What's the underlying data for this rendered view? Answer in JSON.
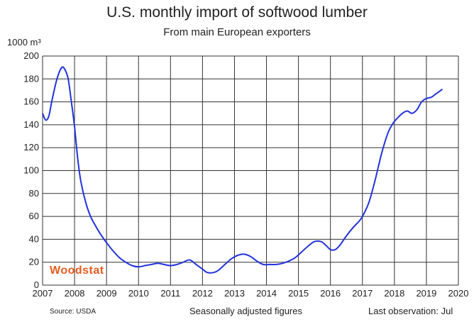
{
  "chart_data": {
    "type": "line",
    "title": "U.S.  monthly import of softwood lumber",
    "subtitle": "From main European exporters",
    "ylabel": "1000 m³",
    "xlim": [
      2007,
      2020
    ],
    "ylim": [
      0,
      200
    ],
    "x_ticks": [
      "2007",
      "2008",
      "2009",
      "2010",
      "2011",
      "2012",
      "2013",
      "2014",
      "2015",
      "2016",
      "2017",
      "2018",
      "2019",
      "2020"
    ],
    "y_ticks": [
      "0",
      "20",
      "40",
      "60",
      "80",
      "100",
      "120",
      "140",
      "160",
      "180",
      "200"
    ],
    "grid": true,
    "legend": "none",
    "series": [
      {
        "color": "#2233dd",
        "x": [
          2007.0,
          2007.1,
          2007.2,
          2007.3,
          2007.45,
          2007.6,
          2007.7,
          2007.8,
          2007.9,
          2008.0,
          2008.1,
          2008.2,
          2008.35,
          2008.5,
          2008.65,
          2008.8,
          2009.0,
          2009.2,
          2009.4,
          2009.6,
          2009.8,
          2010.0,
          2010.2,
          2010.4,
          2010.6,
          2010.8,
          2011.0,
          2011.2,
          2011.4,
          2011.6,
          2011.8,
          2012.0,
          2012.15,
          2012.35,
          2012.5,
          2012.7,
          2012.9,
          2013.1,
          2013.3,
          2013.5,
          2013.7,
          2013.9,
          2014.1,
          2014.3,
          2014.5,
          2014.7,
          2014.9,
          2015.1,
          2015.3,
          2015.5,
          2015.7,
          2015.85,
          2016.0,
          2016.15,
          2016.3,
          2016.5,
          2016.7,
          2016.9,
          2017.0,
          2017.2,
          2017.4,
          2017.6,
          2017.8,
          2017.95,
          2018.1,
          2018.25,
          2018.4,
          2018.55,
          2018.7,
          2018.85,
          2019.0,
          2019.15,
          2019.3,
          2019.5
        ],
        "y": [
          150,
          144,
          148,
          162,
          180,
          190,
          188,
          180,
          160,
          138,
          110,
          90,
          72,
          60,
          52,
          45,
          37,
          30,
          24,
          20,
          17,
          16,
          17,
          18,
          19,
          18,
          17,
          18,
          20,
          22,
          18,
          14,
          11,
          11,
          13,
          18,
          23,
          26,
          27,
          25,
          21,
          18,
          18,
          18,
          19,
          21,
          24,
          29,
          34,
          38,
          38,
          35,
          31,
          31,
          35,
          43,
          50,
          56,
          60,
          72,
          92,
          115,
          133,
          141,
          146,
          150,
          152,
          150,
          153,
          160,
          163,
          164,
          167,
          171
        ]
      }
    ]
  },
  "logo_text": "Woodstat",
  "footer": {
    "source": "Source: USDA",
    "note": "Seasonally adjusted figures",
    "last_observation": "Last observation: Jul"
  }
}
